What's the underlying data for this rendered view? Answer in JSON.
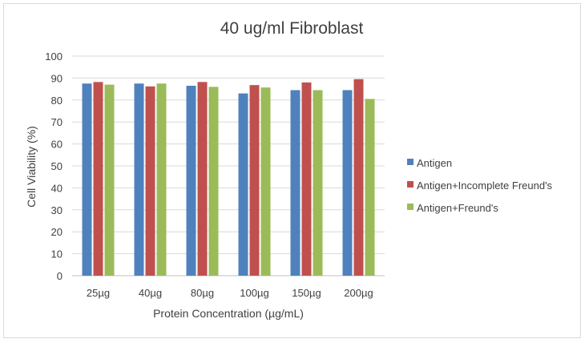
{
  "chart_data": {
    "type": "bar",
    "title": "40 ug/ml Fibroblast",
    "xlabel": "Protein Concentration (µg/mL)",
    "ylabel": "Cell Viability (%)",
    "ylim": [
      0,
      100
    ],
    "yticks": [
      0,
      10,
      20,
      30,
      40,
      50,
      60,
      70,
      80,
      90,
      100
    ],
    "grid": true,
    "legend_position": "right",
    "categories": [
      "25µg",
      "40µg",
      "80µg",
      "100µg",
      "150µg",
      "200µg"
    ],
    "series": [
      {
        "name": "Antigen",
        "color": "#4f81bd",
        "values": [
          87.5,
          87.5,
          86.5,
          83,
          84.5,
          84.5
        ]
      },
      {
        "name": "Antigen+Incomplete Freund's",
        "color": "#c0504d",
        "values": [
          88.2,
          86.2,
          88.2,
          86.8,
          88,
          89.5
        ]
      },
      {
        "name": "Antigen+Freund's",
        "color": "#9bbb59",
        "values": [
          87,
          87.5,
          86,
          85.7,
          84.5,
          80.5
        ]
      }
    ]
  }
}
